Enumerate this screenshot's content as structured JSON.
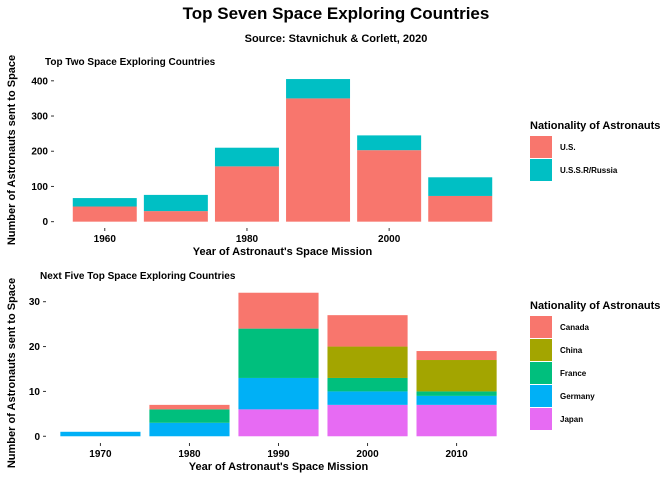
{
  "title": "Top Seven Space Exploring Countries",
  "subtitle": "Source: Stavnichuk & Corlett, 2020",
  "chart_data": [
    {
      "type": "bar",
      "stacked": true,
      "title": "Top Two Space Exploring Countries",
      "xlabel": "Year of Astronaut's Space Mission",
      "ylabel": "Number of Astronauts sent to Space",
      "categories": [
        1960,
        1970,
        1980,
        1990,
        2000,
        2010
      ],
      "x_ticks": [
        1960,
        1980,
        2000
      ],
      "x_range": [
        1953,
        2017
      ],
      "y_ticks": [
        0,
        100,
        200,
        300,
        400
      ],
      "ylim": [
        -18,
        425
      ],
      "legend_title": "Nationality of Astronauts",
      "legend_position": "right",
      "series": [
        {
          "name": "U.S.",
          "color": "#F8766D",
          "values": [
            43,
            30,
            157,
            350,
            203,
            73
          ]
        },
        {
          "name": "U.S.S.R/Russia",
          "color": "#00BFC4",
          "values": [
            24,
            46,
            53,
            55,
            42,
            53
          ]
        }
      ],
      "legend": [
        "U.S.",
        "U.S.S.R/Russia"
      ],
      "grid": false
    },
    {
      "type": "bar",
      "stacked": true,
      "title": "Next Five Top Space Exploring Countries",
      "xlabel": "Year of Astronaut's Space Mission",
      "ylabel": "Number of Astronauts sent to Space",
      "categories": [
        1970,
        1980,
        1990,
        2000,
        2010
      ],
      "x_ticks": [
        1970,
        1980,
        1990,
        2000,
        2010
      ],
      "x_range": [
        1964,
        2016
      ],
      "y_ticks": [
        0,
        10,
        20,
        30
      ],
      "ylim": [
        -1.5,
        33.5
      ],
      "legend_title": "Nationality of Astronauts",
      "legend_position": "right",
      "series": [
        {
          "name": "Japan",
          "color": "#E76BF3",
          "values": [
            0,
            0,
            6,
            7,
            7
          ]
        },
        {
          "name": "Germany",
          "color": "#00B0F6",
          "values": [
            1,
            3,
            7,
            3,
            2
          ]
        },
        {
          "name": "France",
          "color": "#00BF7D",
          "values": [
            0,
            3,
            11,
            3,
            1
          ]
        },
        {
          "name": "China",
          "color": "#A3A500",
          "values": [
            0,
            0,
            0,
            7,
            7
          ]
        },
        {
          "name": "Canada",
          "color": "#F8766D",
          "values": [
            0,
            1,
            8,
            7,
            2
          ]
        }
      ],
      "legend": [
        "Canada",
        "China",
        "France",
        "Germany",
        "Japan"
      ],
      "grid": false
    }
  ]
}
